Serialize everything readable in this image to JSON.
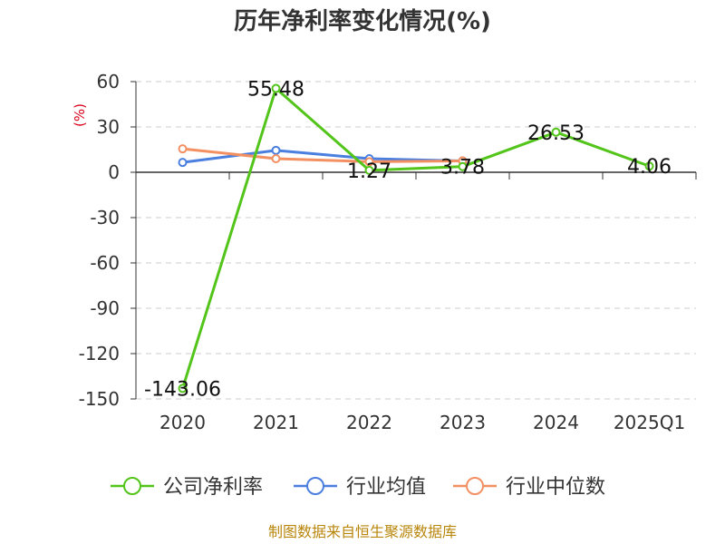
{
  "chart_data": {
    "type": "line",
    "title": "历年净利率变化情况(%)",
    "unit_label": "(%)",
    "categories": [
      "2020",
      "2021",
      "2022",
      "2023",
      "2024",
      "2025Q1"
    ],
    "ylim": [
      -150,
      60
    ],
    "yticks": [
      60,
      30,
      0,
      -30,
      -60,
      -90,
      -120,
      -150
    ],
    "grid": true,
    "legend_position": "bottom",
    "series": [
      {
        "name": "公司净利率",
        "color": "#52c41a",
        "values": [
          -143.06,
          55.48,
          1.27,
          3.78,
          26.53,
          4.06
        ],
        "labels": [
          "-143.06",
          "55.48",
          "1.27",
          "3.78",
          "26.53",
          "4.06"
        ]
      },
      {
        "name": "行业均值",
        "color": "#4a7fe0",
        "values": [
          6.5,
          14.5,
          9.0,
          7.5,
          null,
          null
        ]
      },
      {
        "name": "行业中位数",
        "color": "#f39062",
        "values": [
          15.5,
          9.0,
          7.0,
          7.5,
          null,
          null
        ]
      }
    ]
  },
  "source": "制图数据来自恒生聚源数据库"
}
